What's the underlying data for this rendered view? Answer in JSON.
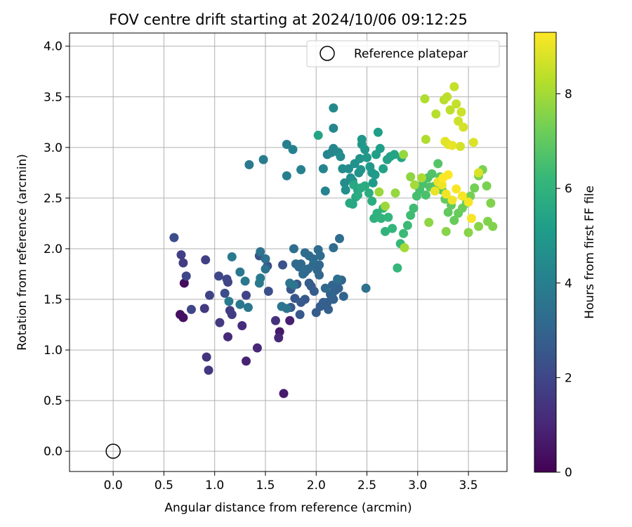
{
  "chart_data": {
    "type": "scatter",
    "title": "FOV centre drift starting at 2024/10/06 09:12:25",
    "xlabel": "Angular distance from reference (arcmin)",
    "ylabel": "Rotation from reference (arcmin)",
    "xlim": [
      -0.43,
      3.88
    ],
    "ylim": [
      -0.2,
      4.13
    ],
    "xticks": [
      0.0,
      0.5,
      1.0,
      1.5,
      2.0,
      2.5,
      3.0,
      3.5
    ],
    "xtick_labels": [
      "0.0",
      "0.5",
      "1.0",
      "1.5",
      "2.0",
      "2.5",
      "3.0",
      "3.5"
    ],
    "yticks": [
      0.0,
      0.5,
      1.0,
      1.5,
      2.0,
      2.5,
      3.0,
      3.5,
      4.0
    ],
    "ytick_labels": [
      "0.0",
      "0.5",
      "1.0",
      "1.5",
      "2.0",
      "2.5",
      "3.0",
      "3.5",
      "4.0"
    ],
    "grid": true,
    "legend": {
      "placement": "top-right",
      "entries": [
        "Reference platepar"
      ]
    },
    "reference_point": {
      "name": "Reference platepar",
      "x": 0.0,
      "y": 0.0,
      "marker": "open-circle"
    },
    "colorbar": {
      "label": "Hours from first FF file",
      "range": [
        0,
        9.3
      ],
      "ticks": [
        0,
        2,
        4,
        6,
        8
      ],
      "tick_labels": [
        "0",
        "2",
        "4",
        "6",
        "8"
      ],
      "colormap": "viridis",
      "colors": [
        "#440154",
        "#482878",
        "#3e4989",
        "#31688e",
        "#26828e",
        "#1f9e89",
        "#35b779",
        "#6ece58",
        "#b5de2b",
        "#fde725"
      ]
    },
    "points": [
      [
        0.7,
        1.66,
        0.3
      ],
      [
        0.69,
        1.32,
        0.4
      ],
      [
        0.66,
        1.35,
        0.4
      ],
      [
        1.64,
        1.18,
        0.6
      ],
      [
        1.68,
        0.57,
        0.7
      ],
      [
        1.74,
        1.29,
        0.8
      ],
      [
        1.31,
        0.89,
        0.9
      ],
      [
        1.42,
        1.02,
        1.0
      ],
      [
        1.63,
        1.12,
        1.0
      ],
      [
        1.13,
        1.13,
        1.1
      ],
      [
        1.27,
        1.24,
        1.2
      ],
      [
        1.6,
        1.29,
        1.3
      ],
      [
        0.92,
        0.93,
        1.4
      ],
      [
        0.94,
        0.8,
        1.5
      ],
      [
        1.05,
        1.27,
        1.6
      ],
      [
        0.9,
        1.41,
        1.6
      ],
      [
        1.17,
        1.35,
        1.7
      ],
      [
        1.15,
        1.39,
        1.7
      ],
      [
        0.69,
        1.86,
        1.7
      ],
      [
        0.67,
        1.94,
        1.8
      ],
      [
        0.91,
        1.89,
        1.8
      ],
      [
        1.31,
        1.54,
        1.9
      ],
      [
        0.95,
        1.54,
        1.9
      ],
      [
        1.13,
        1.67,
        1.9
      ],
      [
        1.12,
        1.7,
        2.0
      ],
      [
        1.04,
        1.73,
        2.0
      ],
      [
        0.72,
        1.73,
        2.0
      ],
      [
        0.77,
        1.4,
        2.0
      ],
      [
        0.6,
        2.11,
        2.2
      ],
      [
        1.1,
        1.56,
        2.2
      ],
      [
        1.53,
        1.58,
        2.3
      ],
      [
        1.52,
        1.83,
        2.4
      ],
      [
        1.44,
        1.93,
        2.4
      ],
      [
        1.67,
        1.84,
        2.4
      ],
      [
        1.79,
        1.51,
        2.5
      ],
      [
        1.81,
        1.65,
        2.5
      ],
      [
        1.75,
        1.6,
        2.5
      ],
      [
        1.75,
        1.42,
        2.6
      ],
      [
        1.85,
        1.47,
        2.6
      ],
      [
        1.89,
        1.5,
        2.6
      ],
      [
        1.84,
        1.35,
        2.6
      ],
      [
        1.93,
        1.66,
        2.7
      ],
      [
        1.95,
        1.63,
        2.7
      ],
      [
        1.98,
        1.58,
        2.7
      ],
      [
        2.0,
        1.37,
        2.7
      ],
      [
        2.04,
        1.43,
        2.8
      ],
      [
        2.07,
        1.47,
        2.8
      ],
      [
        2.11,
        1.47,
        2.8
      ],
      [
        2.12,
        1.4,
        2.8
      ],
      [
        2.14,
        1.55,
        2.9
      ],
      [
        2.17,
        1.5,
        2.9
      ],
      [
        2.19,
        1.59,
        2.9
      ],
      [
        2.22,
        1.61,
        2.9
      ],
      [
        2.25,
        1.69,
        3.0
      ],
      [
        2.27,
        1.53,
        3.0
      ],
      [
        2.21,
        1.67,
        3.0
      ],
      [
        2.16,
        1.64,
        3.0
      ],
      [
        2.16,
        1.56,
        3.0
      ],
      [
        2.09,
        1.61,
        3.1
      ],
      [
        2.03,
        1.74,
        3.1
      ],
      [
        2.01,
        1.79,
        3.1
      ],
      [
        2.03,
        1.84,
        3.1
      ],
      [
        1.97,
        1.84,
        3.1
      ],
      [
        1.92,
        1.8,
        3.2
      ],
      [
        1.87,
        1.75,
        3.2
      ],
      [
        1.89,
        1.77,
        3.2
      ],
      [
        1.85,
        1.85,
        3.2
      ],
      [
        1.8,
        1.85,
        3.2
      ],
      [
        1.83,
        1.82,
        3.2
      ],
      [
        1.78,
        2.0,
        3.3
      ],
      [
        1.89,
        1.96,
        3.3
      ],
      [
        1.93,
        1.93,
        3.3
      ],
      [
        1.97,
        1.9,
        3.3
      ],
      [
        2.04,
        1.93,
        3.3
      ],
      [
        2.02,
        1.99,
        3.3
      ],
      [
        2.17,
        2.01,
        3.3
      ],
      [
        2.23,
        2.1,
        3.3
      ],
      [
        2.21,
        1.7,
        3.4
      ],
      [
        2.49,
        1.61,
        3.4
      ],
      [
        1.5,
        1.8,
        3.5
      ],
      [
        1.45,
        1.97,
        3.5
      ],
      [
        1.5,
        1.9,
        3.5
      ],
      [
        1.66,
        1.43,
        3.6
      ],
      [
        1.71,
        1.41,
        3.6
      ],
      [
        1.78,
        1.64,
        3.6
      ],
      [
        1.74,
        1.66,
        3.6
      ],
      [
        1.33,
        1.42,
        3.7
      ],
      [
        1.25,
        1.45,
        3.7
      ],
      [
        1.25,
        1.77,
        3.7
      ],
      [
        1.3,
        1.68,
        3.7
      ],
      [
        1.44,
        1.66,
        3.8
      ],
      [
        1.45,
        1.71,
        3.8
      ],
      [
        1.14,
        1.48,
        3.8
      ],
      [
        1.17,
        1.92,
        3.8
      ],
      [
        1.34,
        2.83,
        3.8
      ],
      [
        1.48,
        2.88,
        3.9
      ],
      [
        1.71,
        3.03,
        4.0
      ],
      [
        1.71,
        2.72,
        4.0
      ],
      [
        1.77,
        2.98,
        4.1
      ],
      [
        1.85,
        2.78,
        4.1
      ],
      [
        2.07,
        2.79,
        4.2
      ],
      [
        2.09,
        2.57,
        4.2
      ],
      [
        2.11,
        2.93,
        4.2
      ],
      [
        2.15,
        2.95,
        4.3
      ],
      [
        2.17,
        2.99,
        4.3
      ],
      [
        2.17,
        3.19,
        4.3
      ],
      [
        2.17,
        3.39,
        4.4
      ],
      [
        2.22,
        2.95,
        4.4
      ],
      [
        2.24,
        2.91,
        4.5
      ],
      [
        2.26,
        2.79,
        4.5
      ],
      [
        2.28,
        2.65,
        4.5
      ],
      [
        2.29,
        2.58,
        4.6
      ],
      [
        2.32,
        2.79,
        4.6
      ],
      [
        2.34,
        2.7,
        4.6
      ],
      [
        2.36,
        2.67,
        4.7
      ],
      [
        2.38,
        2.84,
        4.7
      ],
      [
        2.42,
        2.75,
        4.7
      ],
      [
        2.43,
        2.89,
        4.8
      ],
      [
        2.44,
        2.78,
        4.8
      ],
      [
        2.45,
        3.03,
        4.9
      ],
      [
        2.45,
        3.08,
        4.9
      ],
      [
        2.48,
        2.98,
        4.9
      ],
      [
        2.5,
        2.9,
        5.0
      ],
      [
        2.53,
        2.81,
        5.0
      ],
      [
        2.55,
        2.75,
        5.0
      ],
      [
        2.56,
        2.65,
        5.1
      ],
      [
        2.58,
        2.73,
        5.1
      ],
      [
        2.59,
        2.93,
        5.2
      ],
      [
        2.61,
        3.15,
        5.2
      ],
      [
        2.63,
        2.99,
        5.2
      ],
      [
        2.66,
        2.79,
        5.3
      ],
      [
        2.7,
        2.88,
        5.3
      ],
      [
        2.73,
        2.91,
        5.3
      ],
      [
        2.77,
        2.93,
        5.4
      ],
      [
        2.84,
        2.9,
        5.4
      ],
      [
        2.02,
        3.12,
        5.4
      ],
      [
        2.41,
        2.58,
        5.5
      ],
      [
        2.36,
        2.44,
        5.5
      ],
      [
        2.39,
        2.51,
        5.6
      ],
      [
        2.33,
        2.45,
        5.6
      ],
      [
        2.37,
        2.63,
        5.6
      ],
      [
        2.41,
        2.53,
        5.7
      ],
      [
        2.44,
        2.6,
        5.7
      ],
      [
        2.48,
        2.62,
        5.7
      ],
      [
        2.52,
        2.55,
        5.8
      ],
      [
        2.55,
        2.47,
        5.8
      ],
      [
        2.57,
        2.3,
        5.9
      ],
      [
        2.6,
        2.35,
        5.9
      ],
      [
        2.64,
        2.3,
        6.0
      ],
      [
        2.66,
        2.4,
        6.0
      ],
      [
        2.68,
        2.17,
        6.0
      ],
      [
        2.71,
        2.31,
        6.1
      ],
      [
        2.75,
        2.2,
        6.1
      ],
      [
        2.8,
        1.81,
        6.2
      ],
      [
        2.83,
        2.05,
        6.2
      ],
      [
        2.86,
        2.15,
        6.3
      ],
      [
        2.9,
        2.23,
        6.3
      ],
      [
        2.93,
        2.33,
        6.4
      ],
      [
        2.96,
        2.4,
        6.4
      ],
      [
        2.99,
        2.52,
        6.5
      ],
      [
        3.02,
        2.58,
        6.5
      ],
      [
        3.05,
        2.64,
        6.6
      ],
      [
        3.08,
        2.53,
        6.6
      ],
      [
        3.1,
        2.7,
        6.6
      ],
      [
        3.12,
        2.61,
        6.7
      ],
      [
        3.14,
        2.74,
        6.7
      ],
      [
        3.17,
        2.62,
        6.8
      ],
      [
        3.2,
        2.84,
        6.8
      ],
      [
        3.22,
        2.71,
        6.9
      ],
      [
        3.24,
        2.58,
        6.9
      ],
      [
        3.27,
        2.49,
        7.0
      ],
      [
        3.3,
        2.36,
        7.0
      ],
      [
        3.33,
        2.43,
        7.0
      ],
      [
        3.36,
        2.28,
        7.1
      ],
      [
        3.4,
        2.35,
        7.1
      ],
      [
        3.44,
        2.4,
        7.2
      ],
      [
        3.48,
        2.45,
        7.2
      ],
      [
        3.52,
        2.52,
        7.3
      ],
      [
        3.56,
        2.6,
        7.3
      ],
      [
        3.6,
        2.72,
        7.4
      ],
      [
        3.64,
        2.78,
        7.4
      ],
      [
        3.68,
        2.62,
        7.4
      ],
      [
        3.72,
        2.45,
        7.5
      ],
      [
        3.74,
        2.22,
        7.5
      ],
      [
        3.69,
        2.27,
        7.5
      ],
      [
        3.6,
        2.22,
        7.6
      ],
      [
        3.5,
        2.16,
        7.6
      ],
      [
        3.28,
        2.17,
        7.6
      ],
      [
        3.11,
        2.26,
        7.7
      ],
      [
        2.93,
        2.71,
        7.7
      ],
      [
        2.86,
        2.93,
        7.8
      ],
      [
        2.78,
        2.55,
        7.8
      ],
      [
        2.68,
        2.42,
        7.9
      ],
      [
        2.62,
        2.56,
        7.9
      ],
      [
        2.87,
        2.01,
        8.0
      ],
      [
        2.97,
        2.63,
        8.0
      ],
      [
        3.04,
        2.7,
        8.1
      ],
      [
        3.08,
        3.08,
        8.2
      ],
      [
        3.07,
        3.48,
        8.2
      ],
      [
        3.18,
        3.33,
        8.3
      ],
      [
        3.26,
        3.47,
        8.3
      ],
      [
        3.29,
        3.5,
        8.4
      ],
      [
        3.32,
        3.37,
        8.4
      ],
      [
        3.36,
        3.6,
        8.5
      ],
      [
        3.38,
        3.43,
        8.5
      ],
      [
        3.4,
        3.26,
        8.6
      ],
      [
        3.43,
        3.35,
        8.6
      ],
      [
        3.45,
        3.2,
        8.7
      ],
      [
        3.42,
        3.01,
        8.7
      ],
      [
        3.55,
        3.05,
        8.8
      ],
      [
        3.6,
        2.75,
        8.8
      ],
      [
        3.27,
        3.06,
        8.9
      ],
      [
        3.3,
        3.03,
        8.9
      ],
      [
        3.34,
        3.02,
        9.0
      ],
      [
        3.17,
        2.57,
        9.0
      ],
      [
        3.2,
        2.66,
        9.0
      ],
      [
        3.24,
        2.63,
        9.1
      ],
      [
        3.28,
        2.54,
        9.1
      ],
      [
        3.34,
        2.48,
        9.1
      ],
      [
        3.38,
        2.59,
        9.2
      ],
      [
        3.44,
        2.52,
        9.2
      ],
      [
        3.5,
        2.46,
        9.2
      ],
      [
        3.53,
        2.3,
        9.2
      ],
      [
        3.3,
        2.73,
        9.3
      ],
      [
        3.25,
        2.7,
        9.3
      ]
    ]
  }
}
